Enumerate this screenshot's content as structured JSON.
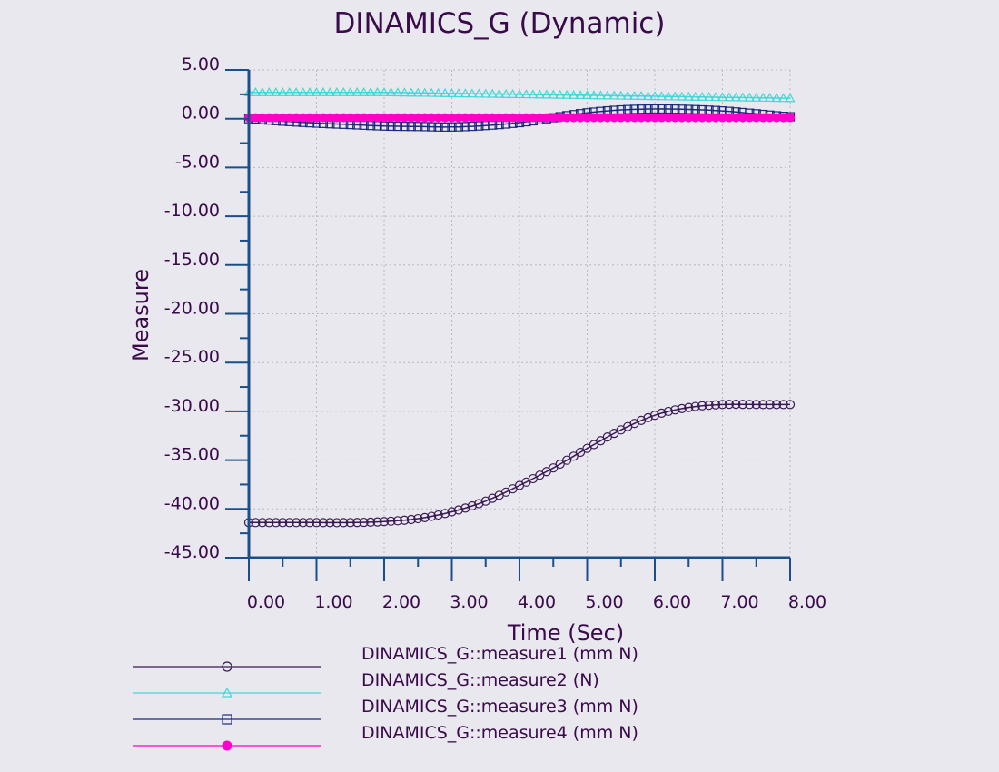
{
  "chart_data": {
    "type": "line",
    "title": "DINAMICS_G (Dynamic)",
    "xlabel": "Time (Sec)",
    "ylabel": "Measure",
    "xlim": [
      0,
      8
    ],
    "ylim": [
      -45,
      5
    ],
    "x_ticks": [
      0,
      1,
      2,
      3,
      4,
      5,
      6,
      7,
      8
    ],
    "x_tick_labels": [
      "0.00",
      "1.00",
      "2.00",
      "3.00",
      "4.00",
      "5.00",
      "6.00",
      "7.00",
      "8.00"
    ],
    "y_ticks": [
      5,
      0,
      -5,
      -10,
      -15,
      -20,
      -25,
      -30,
      -35,
      -40,
      -45
    ],
    "y_tick_labels": [
      "5.00",
      "0.00",
      "-5.00",
      "-10.00",
      "-15.00",
      "-20.00",
      "-25.00",
      "-30.00",
      "-35.00",
      "-40.00",
      "-45.00"
    ],
    "grid": true,
    "legend_position": "bottom",
    "x": [
      0,
      0.5,
      1,
      1.5,
      2,
      2.5,
      3,
      3.5,
      4,
      4.5,
      5,
      5.5,
      6,
      6.5,
      7,
      7.5,
      8
    ],
    "series": [
      {
        "name": "DINAMICS_G::measure1 (mm N)",
        "color": "#3a1a55",
        "marker": "circle",
        "values": [
          -41.4,
          -41.4,
          -41.4,
          -41.4,
          -41.3,
          -41.0,
          -40.3,
          -39.2,
          -37.6,
          -35.8,
          -33.8,
          -31.9,
          -30.4,
          -29.6,
          -29.3,
          -29.3,
          -29.3
        ]
      },
      {
        "name": "DINAMICS_G::measure2 (N)",
        "color": "#40d8d8",
        "marker": "triangle",
        "values": [
          2.7,
          2.7,
          2.7,
          2.7,
          2.7,
          2.65,
          2.6,
          2.55,
          2.5,
          2.45,
          2.4,
          2.35,
          2.3,
          2.25,
          2.2,
          2.15,
          2.1
        ]
      },
      {
        "name": "DINAMICS_G::measure3 (mm N)",
        "color": "#1a2a7a",
        "marker": "square",
        "values": [
          0.0,
          -0.25,
          -0.45,
          -0.6,
          -0.75,
          -0.8,
          -0.85,
          -0.7,
          -0.4,
          0.1,
          0.6,
          0.9,
          1.0,
          0.95,
          0.8,
          0.5,
          0.2
        ]
      },
      {
        "name": "DINAMICS_G::measure4 (mm N)",
        "color": "#ff00cc",
        "marker": "filled-circle",
        "values": [
          0.1,
          0.1,
          0.1,
          0.1,
          0.1,
          0.1,
          0.1,
          0.1,
          0.1,
          0.1,
          0.1,
          0.1,
          0.1,
          0.1,
          0.1,
          0.1,
          0.1
        ]
      }
    ]
  }
}
